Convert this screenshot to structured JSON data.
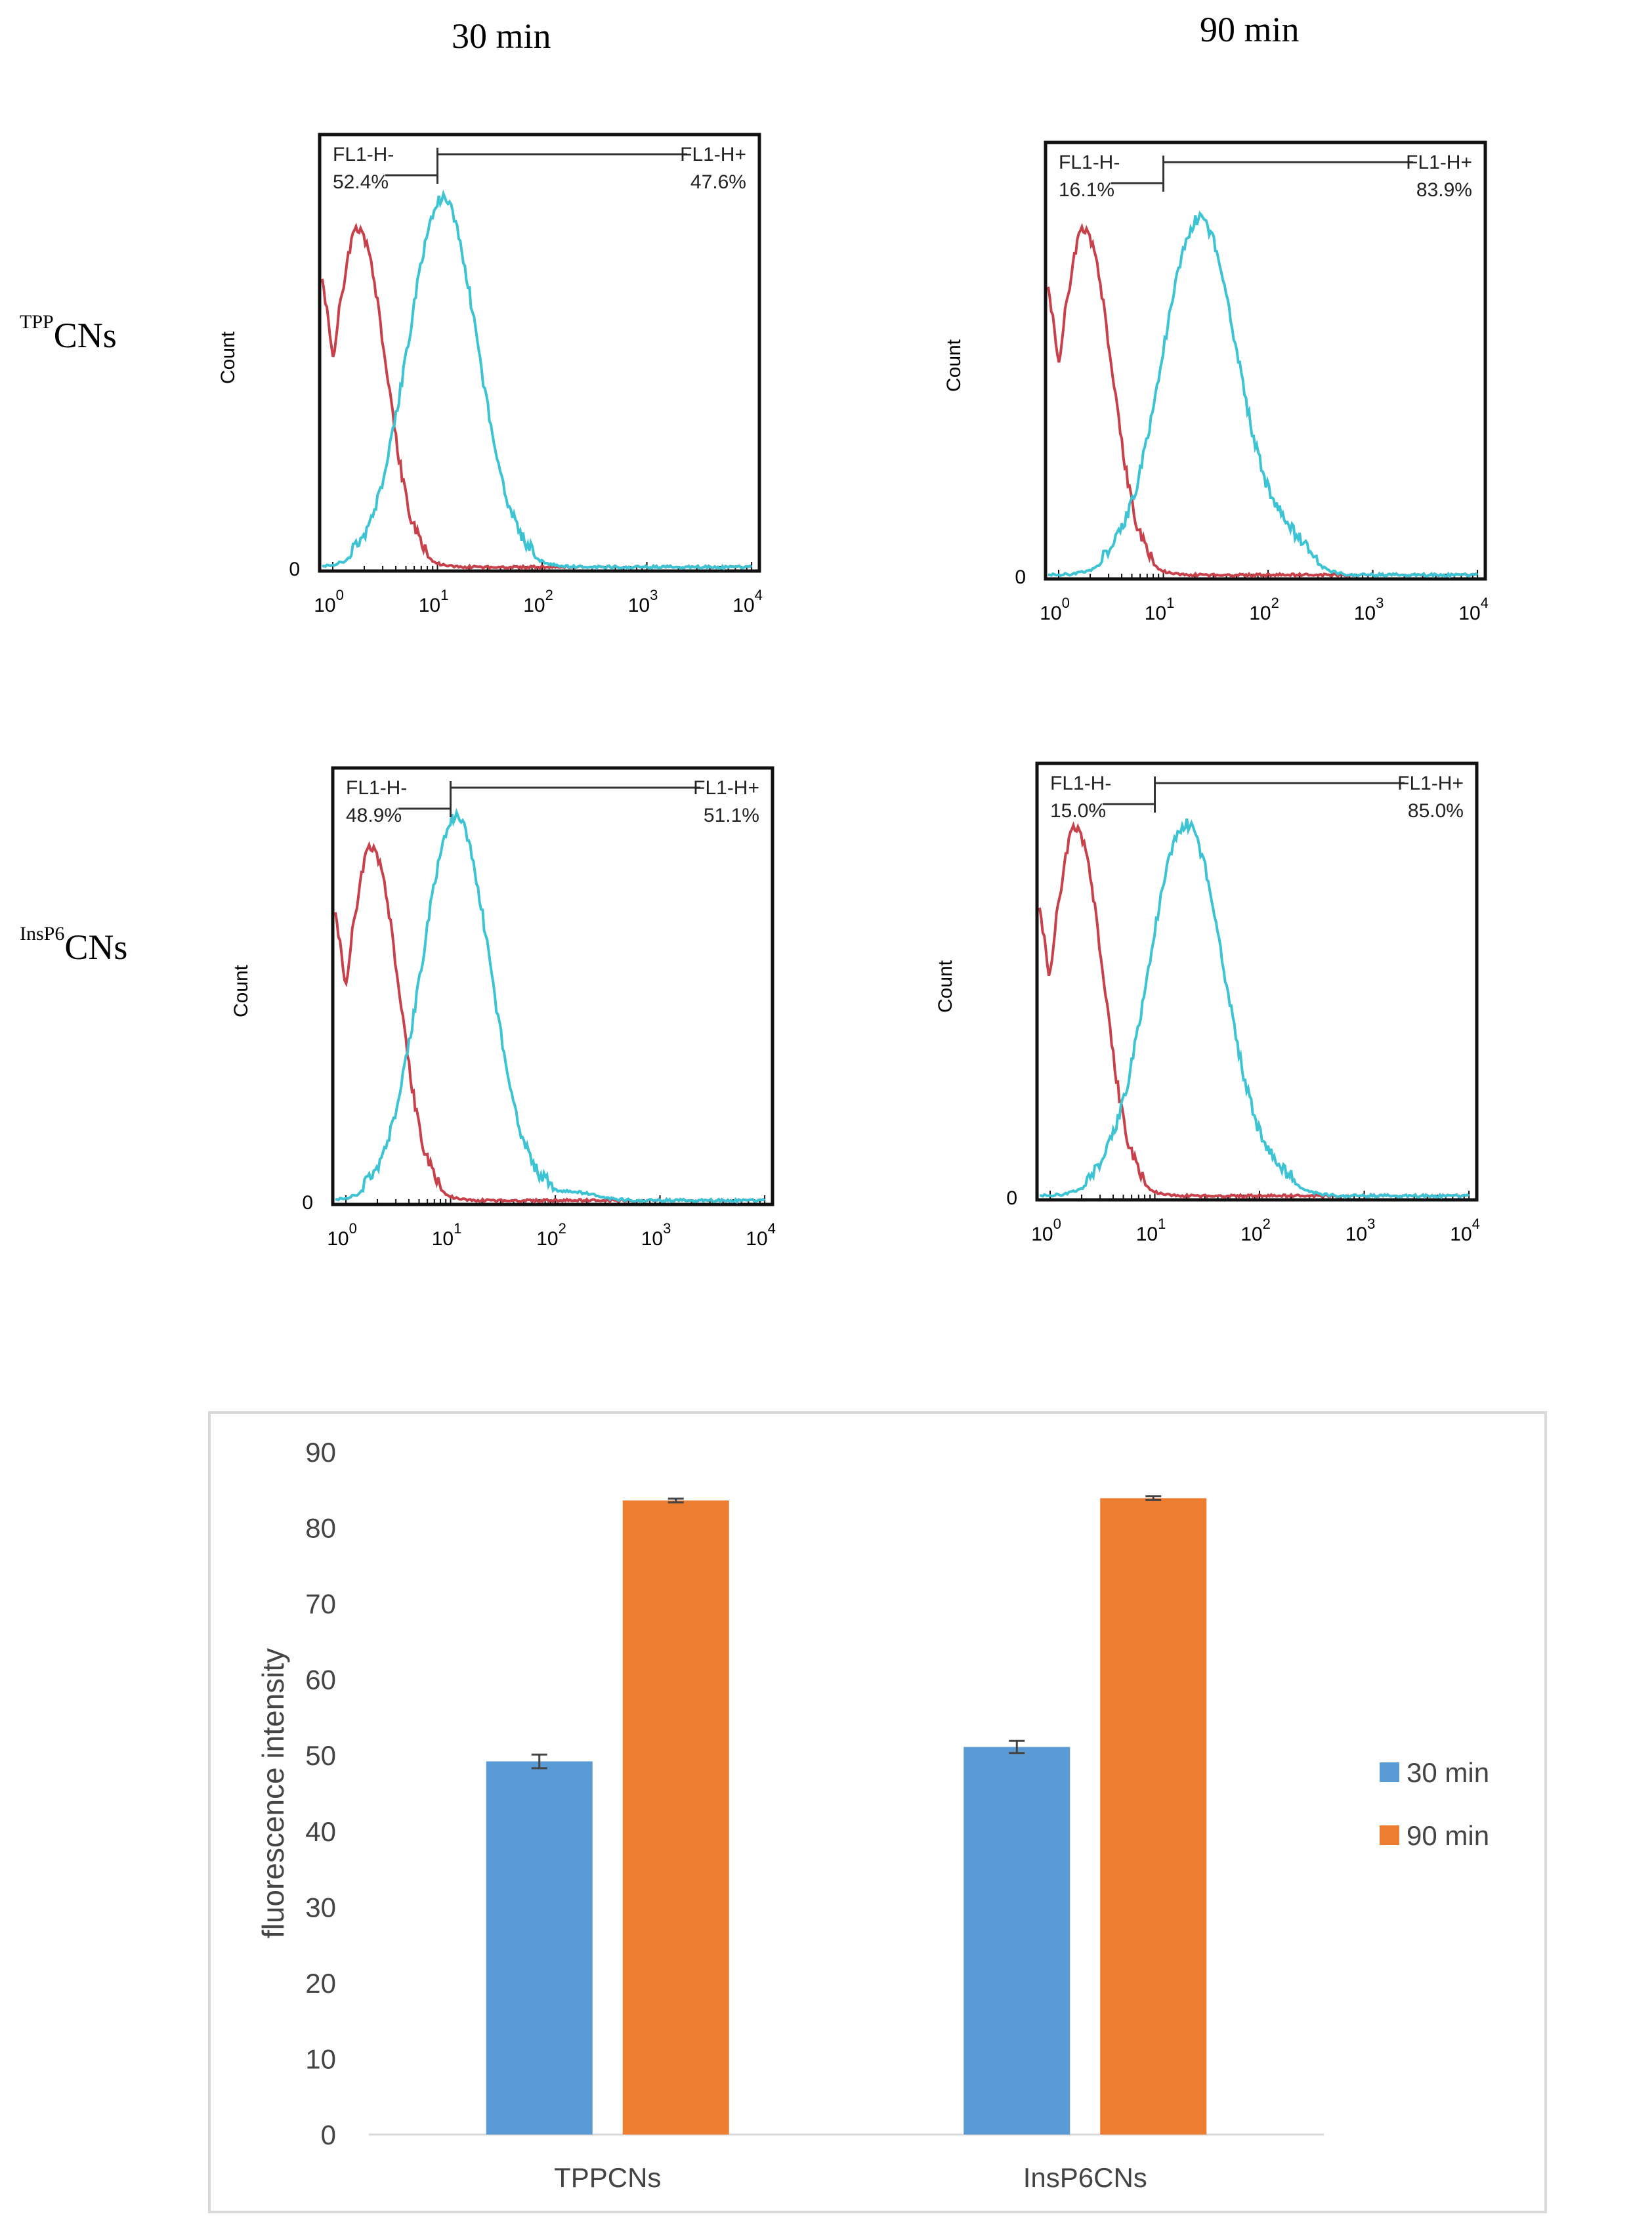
{
  "header": {
    "col1": "30 min",
    "col2": "90 min"
  },
  "rows": [
    {
      "sup": "TPP",
      "label": "CNs"
    },
    {
      "sup": "InsP6",
      "label": "CNs"
    }
  ],
  "histograms": [
    {
      "neg_label": "FL1-H-",
      "neg_pct": "52.4%",
      "pos_label": "FL1-H+",
      "pos_pct": "47.6%",
      "ylabel": "Count",
      "zero": "0",
      "xticks": [
        "0",
        "1",
        "2",
        "3",
        "4"
      ]
    },
    {
      "neg_label": "FL1-H-",
      "neg_pct": "16.1%",
      "pos_label": "FL1-H+",
      "pos_pct": "83.9%",
      "ylabel": "Count",
      "zero": "0",
      "xticks": [
        "0",
        "1",
        "2",
        "3",
        "4"
      ]
    },
    {
      "neg_label": "FL1-H-",
      "neg_pct": "48.9%",
      "pos_label": "FL1-H+",
      "pos_pct": "51.1%",
      "ylabel": "Count",
      "zero": "0",
      "xticks": [
        "0",
        "1",
        "2",
        "3",
        "4"
      ]
    },
    {
      "neg_label": "FL1-H-",
      "neg_pct": "15.0%",
      "pos_label": "FL1-H+",
      "pos_pct": "85.0%",
      "ylabel": "Count",
      "zero": "0",
      "xticks": [
        "0",
        "1",
        "2",
        "3",
        "4"
      ]
    }
  ],
  "colors": {
    "control": "#c8404a",
    "sample": "#3cc3d4",
    "s30": "#5b9bd5",
    "s90": "#ed7d31"
  },
  "chart_data": {
    "type": "bar",
    "categories": [
      "TPPCNs",
      "InsP6CNs"
    ],
    "series": [
      {
        "name": "30 min",
        "values": [
          49.2,
          51.1
        ],
        "errors": [
          0.9,
          0.8
        ]
      },
      {
        "name": "90 min",
        "values": [
          83.6,
          83.9
        ],
        "errors": [
          0.25,
          0.25
        ]
      }
    ],
    "ylabel": "fluorescence intensity",
    "ylim": [
      0,
      90
    ],
    "yticks": [
      "0",
      "10",
      "20",
      "30",
      "40",
      "50",
      "60",
      "70",
      "80",
      "90"
    ],
    "legend": "right"
  }
}
